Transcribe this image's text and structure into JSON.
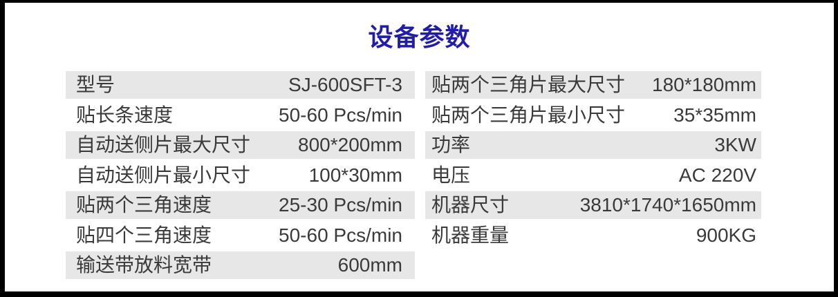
{
  "header": {
    "title": "设备参数",
    "title_color": "#211caa"
  },
  "colors": {
    "row_stripe": "#e7e7e7",
    "text": "#3a3a3a",
    "frame": "#000000"
  },
  "spec_table": {
    "left_column": {
      "rows": [
        {
          "label": "型号",
          "value": "SJ-600SFT-3"
        },
        {
          "label": "贴长条速度",
          "value": "50-60 Pcs/min"
        },
        {
          "label": "自动送侧片最大尺寸",
          "value": "800*200mm"
        },
        {
          "label": "自动送侧片最小尺寸",
          "value": "100*30mm"
        },
        {
          "label": "贴两个三角速度",
          "value": "25-30 Pcs/min"
        },
        {
          "label": "贴四个三角速度",
          "value": "50-60 Pcs/min"
        },
        {
          "label": "输送带放料宽带",
          "value": "600mm"
        }
      ]
    },
    "right_column": {
      "rows": [
        {
          "label": "贴两个三角片最大尺寸",
          "value": "180*180mm"
        },
        {
          "label": "贴两个三角片最小尺寸",
          "value": "35*35mm"
        },
        {
          "label": "功率",
          "value": "3KW"
        },
        {
          "label": "电压",
          "value": "AC 220V"
        },
        {
          "label": "机器尺寸",
          "value": "3810*1740*1650mm"
        },
        {
          "label": "机器重量",
          "value": "900KG"
        }
      ]
    }
  }
}
